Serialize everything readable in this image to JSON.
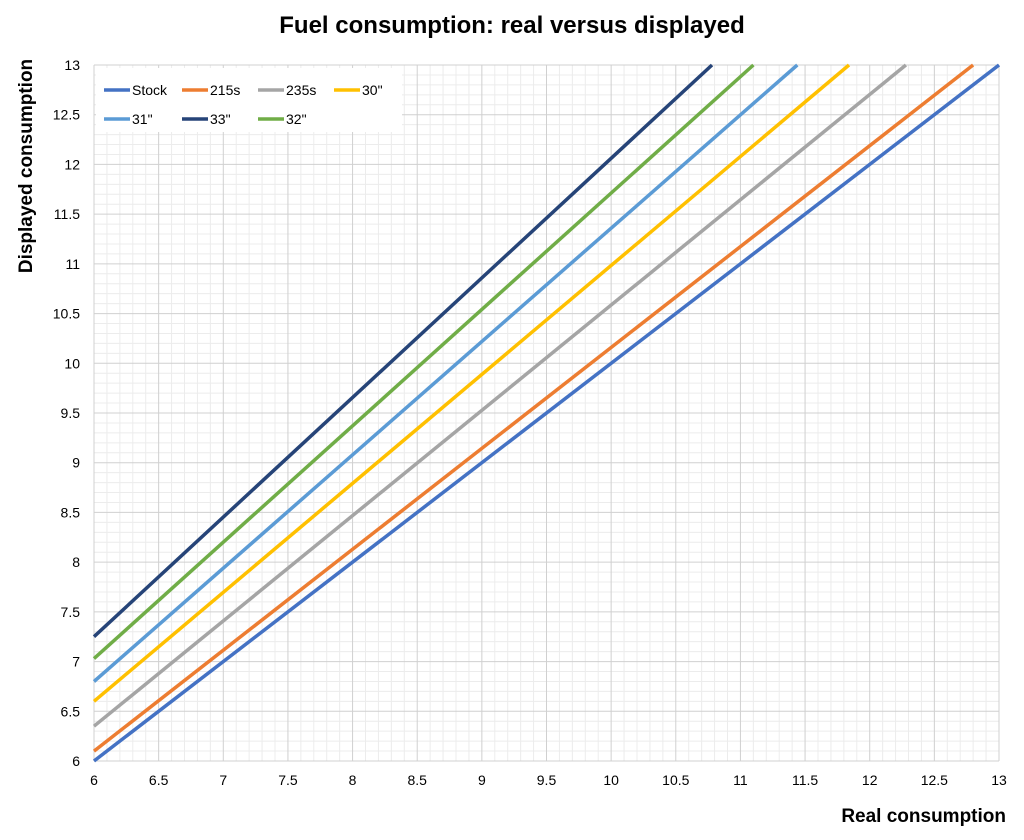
{
  "chart_data": {
    "type": "line",
    "title": "Fuel consumption: real versus displayed",
    "xlabel": "Real consumption",
    "ylabel": "Displayed consumption",
    "xlim": [
      6,
      13
    ],
    "ylim": [
      6,
      13
    ],
    "x_ticks": [
      "6",
      "6.5",
      "7",
      "7.5",
      "8",
      "8.5",
      "9",
      "9.5",
      "10",
      "10.5",
      "11",
      "11.5",
      "12",
      "12.5",
      "13"
    ],
    "y_ticks": [
      "6",
      "6.5",
      "7",
      "7.5",
      "8",
      "8.5",
      "9",
      "9.5",
      "10",
      "10.5",
      "11",
      "11.5",
      "12",
      "12.5",
      "13"
    ],
    "grid": true,
    "minor_grid": true,
    "legend_position": "top-left",
    "series": [
      {
        "name": "Stock",
        "color": "#4472C4",
        "x": [
          6,
          13
        ],
        "y": [
          6.0,
          13.0
        ]
      },
      {
        "name": "215s",
        "color": "#ED7D31",
        "x": [
          6,
          12.8
        ],
        "y": [
          6.1,
          13.0
        ]
      },
      {
        "name": "235s",
        "color": "#A5A5A5",
        "x": [
          6,
          12.28
        ],
        "y": [
          6.35,
          13.0
        ]
      },
      {
        "name": "30\"",
        "color": "#FFC000",
        "x": [
          6,
          11.84
        ],
        "y": [
          6.6,
          13.0
        ]
      },
      {
        "name": "31\"",
        "color": "#5B9BD5",
        "x": [
          6,
          11.44
        ],
        "y": [
          6.8,
          13.0
        ]
      },
      {
        "name": "33\"",
        "color": "#264478",
        "x": [
          6,
          10.78
        ],
        "y": [
          7.25,
          13.0
        ]
      },
      {
        "name": "32\"",
        "color": "#70AD47",
        "x": [
          6,
          11.1
        ],
        "y": [
          7.03,
          13.0
        ]
      }
    ]
  }
}
